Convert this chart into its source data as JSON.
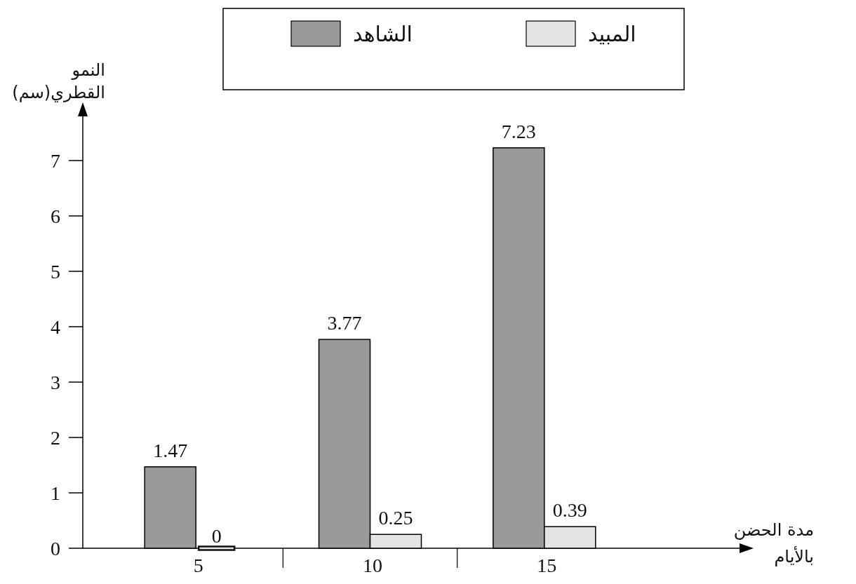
{
  "chart_data": {
    "type": "bar",
    "categories": [
      "5",
      "10",
      "15"
    ],
    "series": [
      {
        "name": "الشاهد",
        "color": "#9a9a9a",
        "values": [
          1.47,
          3.77,
          7.23
        ]
      },
      {
        "name": "المبيد",
        "color": "#e4e4e4",
        "values": [
          0,
          0.25,
          0.39
        ]
      }
    ],
    "xlabel": "مدة الحضن بالأيام",
    "ylabel": "النمو القطري(سم)",
    "ylim": [
      0,
      8
    ],
    "yticks": [
      0,
      1,
      2,
      3,
      4,
      5,
      6,
      7
    ],
    "data_labels": true,
    "legend": "top"
  }
}
